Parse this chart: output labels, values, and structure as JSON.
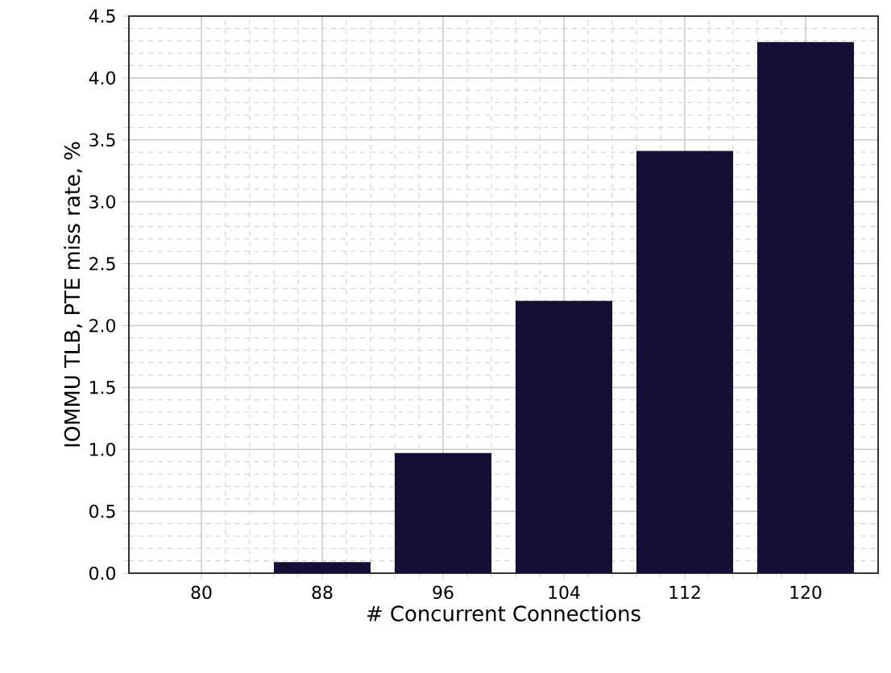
{
  "chart_data": {
    "type": "bar",
    "xlabel": "# Concurrent Connections",
    "ylabel": "IOMMU TLB, PTE miss rate, %",
    "categories": [
      "80",
      "88",
      "96",
      "104",
      "112",
      "120"
    ],
    "values": [
      0,
      0.09,
      0.97,
      2.2,
      3.41,
      4.29
    ],
    "color": "#150f35",
    "ylim": [
      0,
      4.5
    ],
    "yticks": [
      {
        "value": 0,
        "label": "0.0"
      },
      0.5,
      {
        "value": 1,
        "label": "1.0"
      },
      1.5,
      {
        "value": 2,
        "label": "2.0"
      },
      2.5,
      {
        "value": 3,
        "label": "3.0"
      },
      3.5,
      {
        "value": 4,
        "label": "4.0"
      },
      4.5
    ],
    "grid": true
  }
}
